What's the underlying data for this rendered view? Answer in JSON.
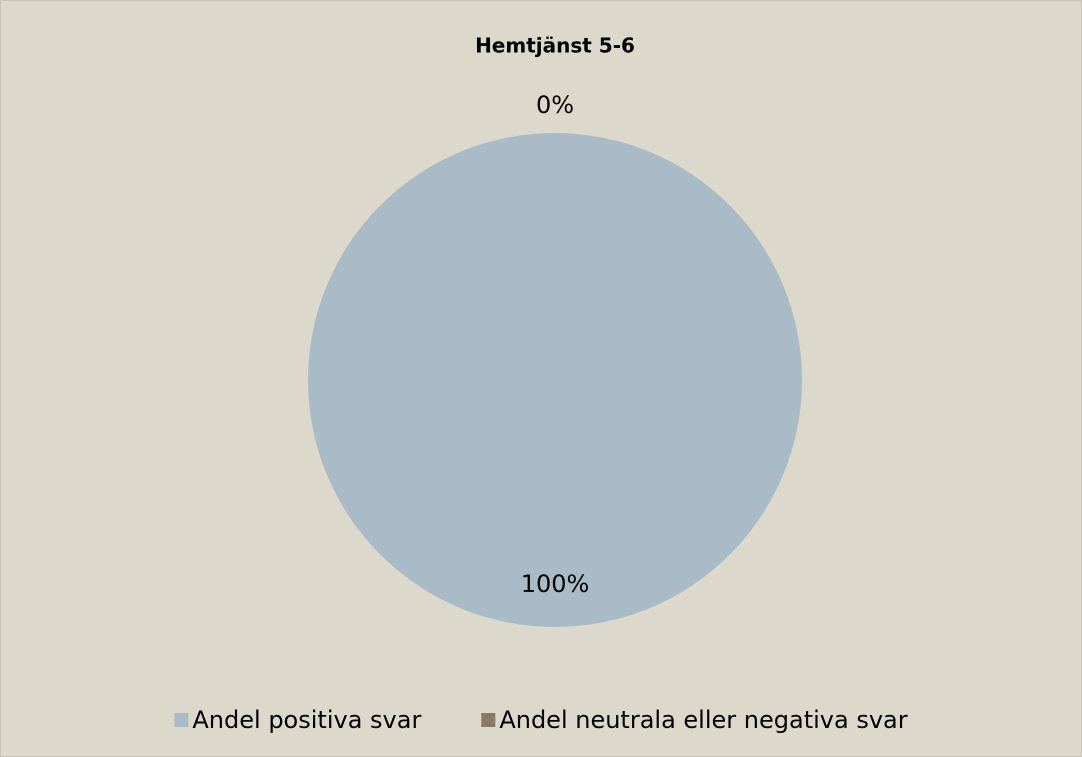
{
  "chart_data": {
    "type": "pie",
    "title": "Hemtjänst 5-6",
    "categories": [
      "Andel positiva svar",
      "Andel neutrala eller negativa svar"
    ],
    "values": [
      100,
      0
    ],
    "value_labels": [
      "100%",
      "0%"
    ],
    "colors": [
      "#a8bbc6",
      "#8b7866"
    ],
    "legend": "bottom"
  }
}
